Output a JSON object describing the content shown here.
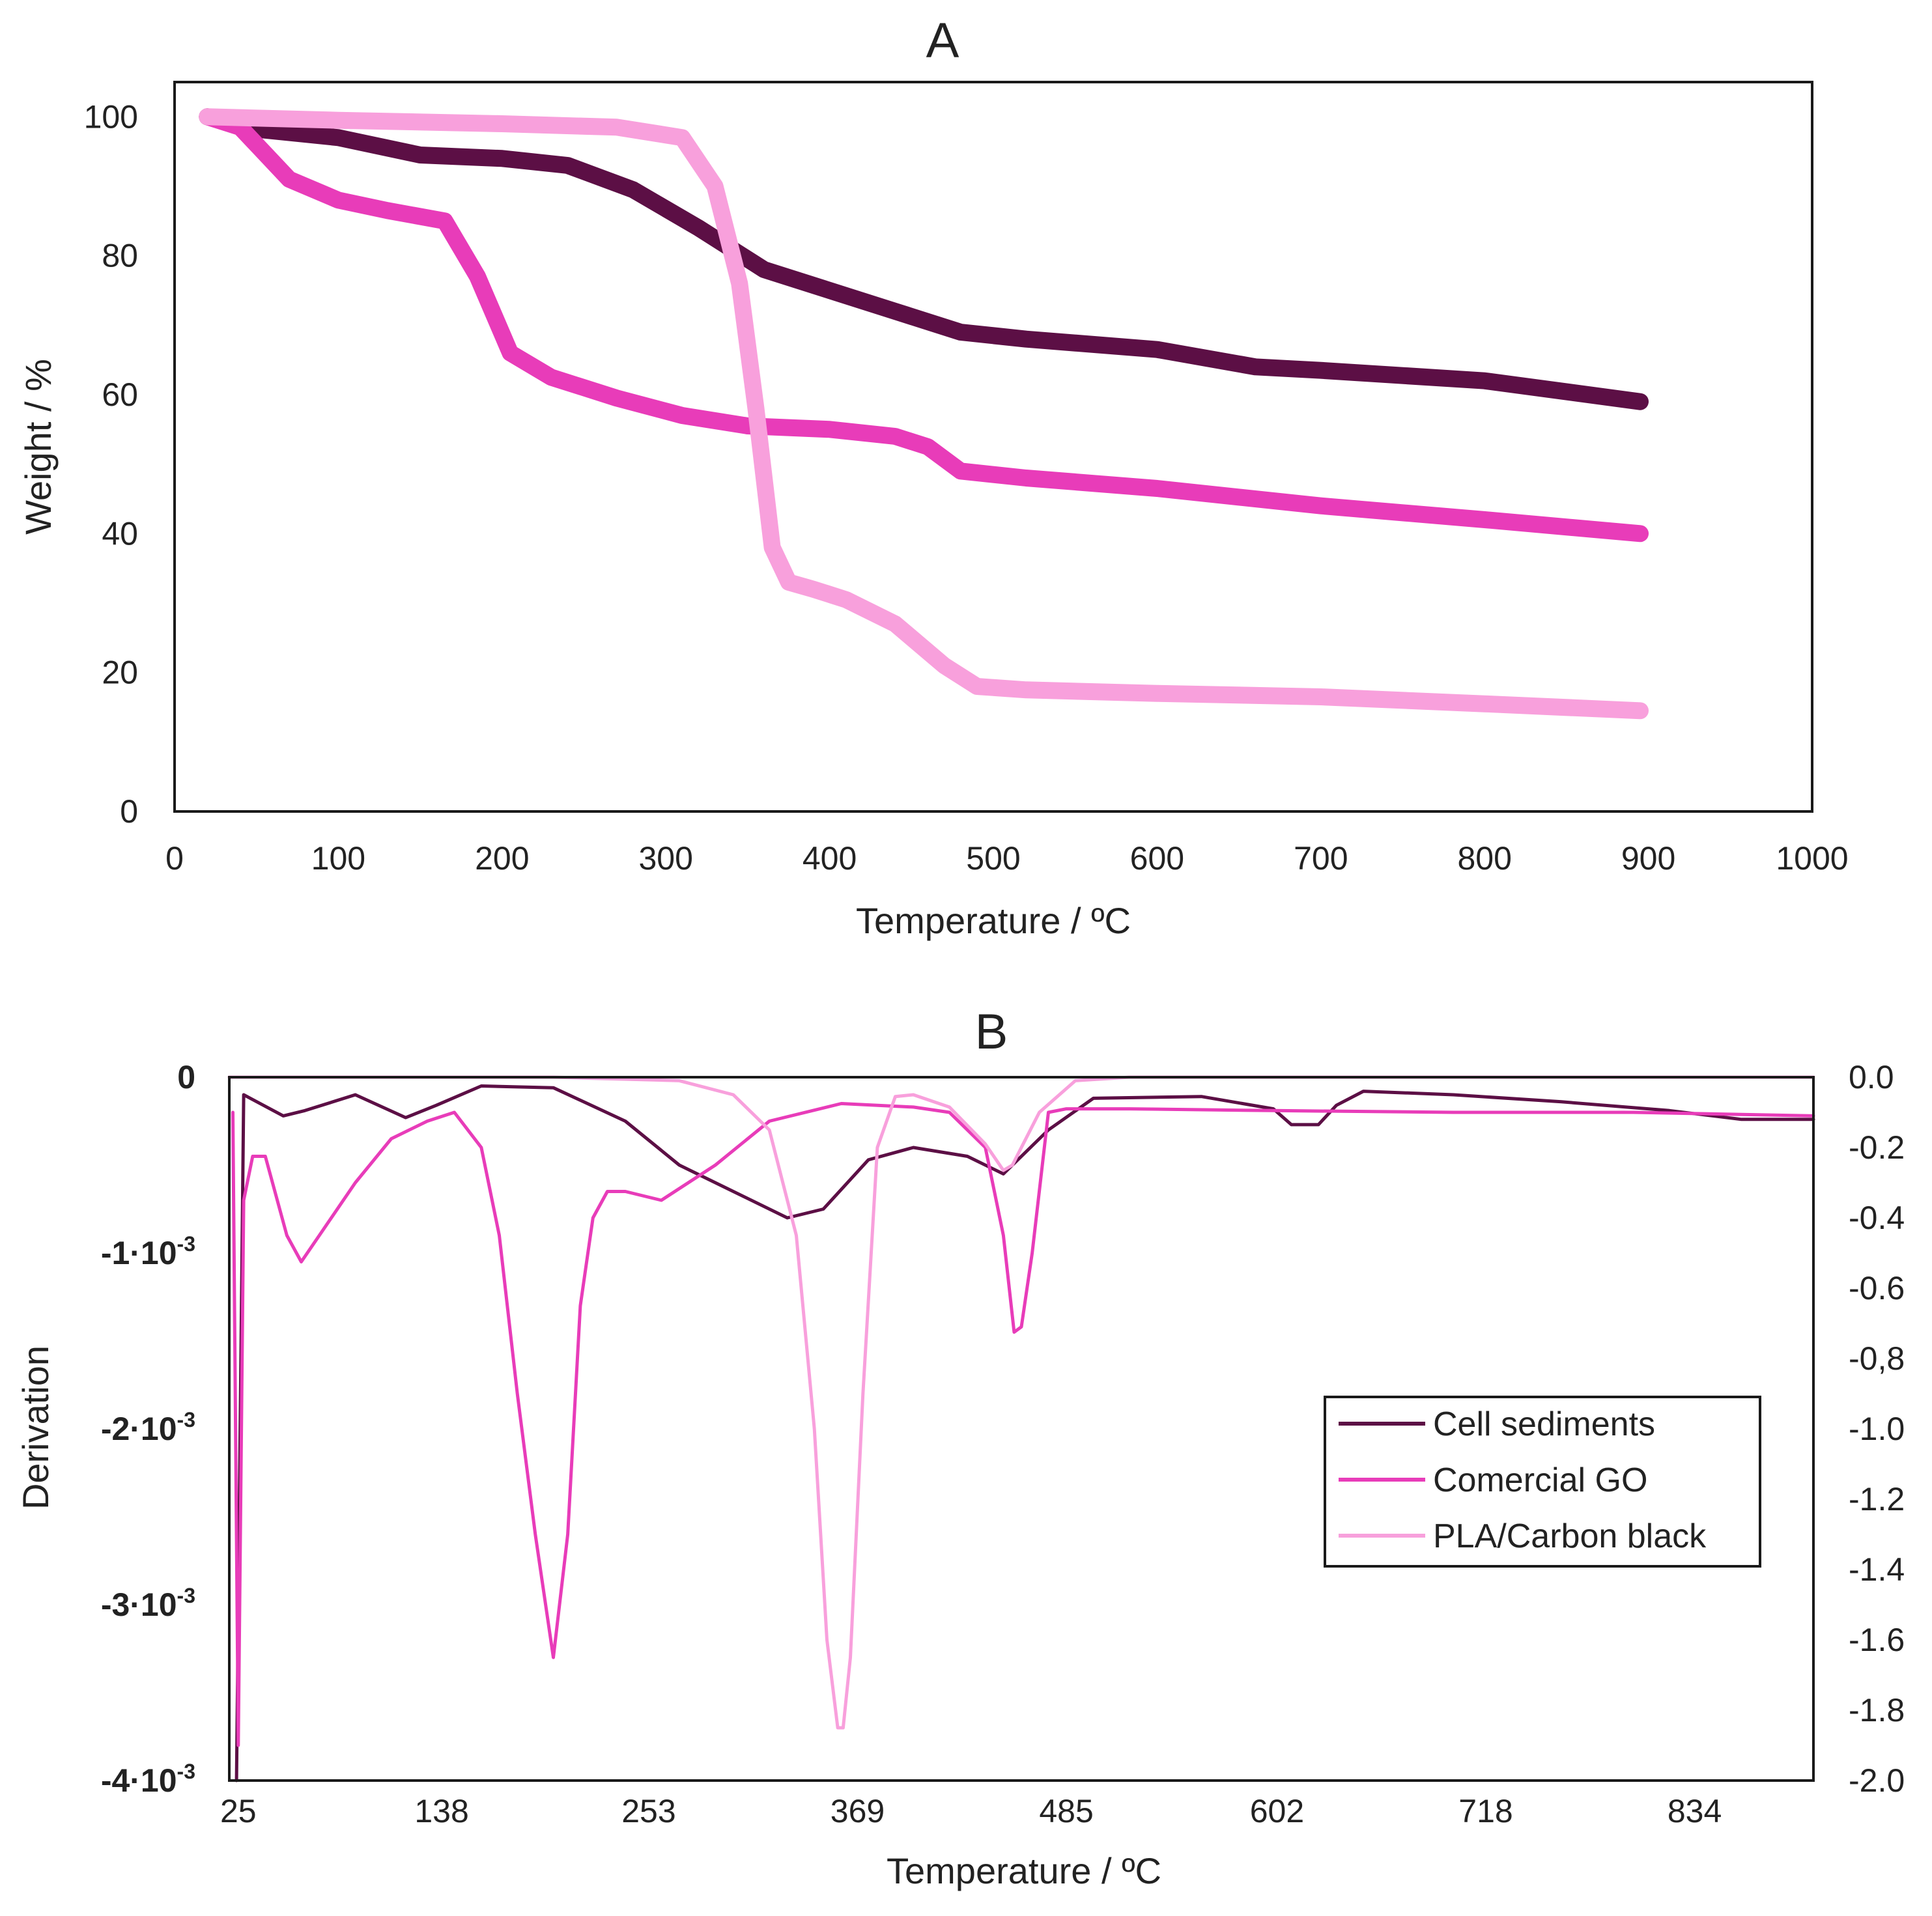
{
  "colors": {
    "cell_sediments": "#5c0f45",
    "comercial_go": "#e83cb9",
    "pla_carbon_black": "#f8a0dc"
  },
  "chart_data": [
    {
      "type": "line",
      "title": "A",
      "xlabel": "Temperature / ºC",
      "ylabel": "Weight / %",
      "xlim": [
        0,
        1000
      ],
      "ylim": [
        0,
        105
      ],
      "x_ticks": [
        "0",
        "100",
        "200",
        "300",
        "400",
        "500",
        "600",
        "700",
        "800",
        "900",
        "1000"
      ],
      "y_ticks": [
        "0",
        "20",
        "40",
        "60",
        "80",
        "100"
      ],
      "grid": false,
      "series": [
        {
          "name": "Cell sediments",
          "color_key": "cell_sediments",
          "x": [
            20,
            50,
            100,
            150,
            200,
            240,
            280,
            320,
            360,
            400,
            440,
            480,
            520,
            600,
            660,
            700,
            800,
            895
          ],
          "y": [
            100,
            98.2,
            97,
            94.5,
            94,
            93,
            89.5,
            84,
            78,
            75,
            72,
            69,
            68,
            66.5,
            64,
            63.5,
            62,
            59
          ]
        },
        {
          "name": "Comercial GO",
          "color_key": "comercial_go",
          "x": [
            20,
            40,
            70,
            100,
            130,
            165,
            185,
            205,
            230,
            270,
            310,
            350,
            400,
            440,
            460,
            480,
            520,
            600,
            700,
            800,
            895
          ],
          "y": [
            100,
            98.5,
            91,
            88,
            86.5,
            85,
            77,
            66,
            62.5,
            59.5,
            57,
            55.5,
            55,
            54,
            52.5,
            49,
            48,
            46.5,
            44,
            42,
            40
          ]
        },
        {
          "name": "PLA/Carbon black",
          "color_key": "pla_carbon_black",
          "x": [
            20,
            100,
            200,
            270,
            310,
            330,
            345,
            355,
            365,
            375,
            390,
            410,
            440,
            470,
            490,
            520,
            600,
            700,
            800,
            895
          ],
          "y": [
            100,
            99.5,
            99,
            98.5,
            97,
            90,
            76,
            58,
            38,
            33,
            32,
            30.5,
            27,
            21,
            18,
            17.5,
            17,
            16.5,
            15.5,
            14.5
          ]
        }
      ]
    },
    {
      "type": "line",
      "title": "B",
      "xlabel": "Temperature / ºC",
      "ylabel": "Derivation",
      "xlim": [
        20,
        900
      ],
      "ylim_left": [
        -0.004,
        0
      ],
      "ylim_right": [
        -2.0,
        0.0
      ],
      "x_ticks": [
        "25",
        "138",
        "253",
        "369",
        "485",
        "602",
        "718",
        "834"
      ],
      "y_ticks_left": [
        "0",
        "-1·10",
        "-2·10",
        "-3·10",
        "-4·10"
      ],
      "y_tick_left_exponent": "-3",
      "y_ticks_right": [
        "0.0",
        "-0.2",
        "-0.4",
        "-0.6",
        "-0,8",
        "-1.0",
        "-1.2",
        "-1.4",
        "-1.6",
        "-1.8",
        "-2.0"
      ],
      "legend_position": "center-right",
      "series": [
        {
          "name": "Cell sediments",
          "color_key": "cell_sediments",
          "x": [
            24,
            28,
            50,
            62,
            90,
            118,
            135,
            160,
            200,
            240,
            270,
            300,
            330,
            350,
            375,
            400,
            430,
            450,
            475,
            500,
            560,
            600,
            610,
            625,
            635,
            650,
            700,
            760,
            820,
            860,
            900
          ],
          "y": [
            -0.004,
            -0.0001,
            -0.00022,
            -0.00019,
            -0.0001,
            -0.00023,
            -0.00016,
            -5e-05,
            -6e-05,
            -0.00025,
            -0.0005,
            -0.00065,
            -0.0008,
            -0.00075,
            -0.00047,
            -0.0004,
            -0.00045,
            -0.00055,
            -0.0003,
            -0.00012,
            -0.00011,
            -0.00018,
            -0.00027,
            -0.00027,
            -0.00016,
            -8e-05,
            -0.0001,
            -0.00014,
            -0.00019,
            -0.00024,
            -0.00024
          ]
        },
        {
          "name": "Comercial GO",
          "color_key": "comercial_go",
          "x": [
            22,
            25,
            28,
            33,
            40,
            52,
            60,
            70,
            90,
            110,
            130,
            145,
            160,
            170,
            180,
            190,
            200,
            208,
            215,
            222,
            230,
            240,
            260,
            290,
            320,
            360,
            400,
            420,
            440,
            450,
            456,
            460,
            466,
            475,
            485,
            520,
            600,
            700,
            800,
            900
          ],
          "y": [
            -0.0002,
            -0.0038,
            -0.0007,
            -0.00045,
            -0.00045,
            -0.0009,
            -0.00105,
            -0.0009,
            -0.0006,
            -0.00035,
            -0.00025,
            -0.0002,
            -0.0004,
            -0.0009,
            -0.0018,
            -0.0026,
            -0.0033,
            -0.0026,
            -0.0013,
            -0.0008,
            -0.00065,
            -0.00065,
            -0.0007,
            -0.0005,
            -0.00025,
            -0.00015,
            -0.00017,
            -0.0002,
            -0.0004,
            -0.0009,
            -0.00145,
            -0.00142,
            -0.001,
            -0.0002,
            -0.00018,
            -0.00018,
            -0.00019,
            -0.0002,
            -0.0002,
            -0.00022
          ]
        },
        {
          "name": "PLA/Carbon black",
          "color_key": "pla_carbon_black",
          "x": [
            20,
            200,
            270,
            300,
            320,
            335,
            345,
            352,
            358,
            361,
            365,
            372,
            380,
            390,
            400,
            420,
            440,
            450,
            455,
            470,
            490,
            520,
            600,
            700,
            800,
            900
          ],
          "y": [
            0,
            0,
            -2e-05,
            -0.0001,
            -0.0003,
            -0.0009,
            -0.002,
            -0.0032,
            -0.0037,
            -0.0037,
            -0.0033,
            -0.0018,
            -0.0004,
            -0.00011,
            -0.0001,
            -0.00017,
            -0.00038,
            -0.00053,
            -0.0005,
            -0.0002,
            -2e-05,
            0,
            0,
            0,
            0,
            0
          ]
        }
      ]
    }
  ]
}
